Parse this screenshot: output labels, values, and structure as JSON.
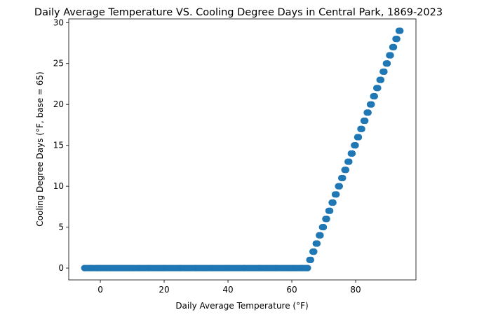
{
  "chart_data": {
    "type": "scatter",
    "title": "Daily Average Temperature VS. Cooling Degree Days in Central Park, 1869-2023",
    "xlabel": "Daily Average Temperature (°F)",
    "ylabel": "Cooling Degree Days (°F, base = 65)",
    "xlim": [
      -9.9,
      98.9
    ],
    "ylim": [
      -1.45,
      30.45
    ],
    "xticks": [
      0,
      20,
      40,
      60,
      80
    ],
    "yticks": [
      0,
      5,
      10,
      15,
      20,
      25,
      30
    ],
    "grid": false,
    "legend": "none",
    "marker_color": "#1f77b4",
    "series": [
      {
        "x_min": -5,
        "x_max": 94,
        "base_temperature": 65,
        "points": [
          [
            -5,
            0
          ],
          [
            -3,
            0
          ],
          [
            -1,
            0
          ],
          [
            0,
            0
          ],
          [
            1,
            0
          ],
          [
            2,
            0
          ],
          [
            3,
            0
          ],
          [
            4,
            0
          ],
          [
            5,
            0
          ],
          [
            6,
            0
          ],
          [
            7,
            0
          ],
          [
            8,
            0
          ],
          [
            9,
            0
          ],
          [
            10,
            0
          ],
          [
            12,
            0
          ],
          [
            15,
            0
          ],
          [
            20,
            0
          ],
          [
            25,
            0
          ],
          [
            30,
            0
          ],
          [
            35,
            0
          ],
          [
            40,
            0
          ],
          [
            45,
            0
          ],
          [
            50,
            0
          ],
          [
            55,
            0
          ],
          [
            60,
            0
          ],
          [
            63,
            0
          ],
          [
            65,
            0
          ],
          [
            66,
            1
          ],
          [
            67,
            2
          ],
          [
            68,
            3
          ],
          [
            69,
            4
          ],
          [
            70,
            5
          ],
          [
            71,
            6
          ],
          [
            72,
            7
          ],
          [
            73,
            8
          ],
          [
            74,
            9
          ],
          [
            75,
            10
          ],
          [
            76,
            11
          ],
          [
            77,
            12
          ],
          [
            78,
            13
          ],
          [
            79,
            14
          ],
          [
            80,
            15
          ],
          [
            81,
            16
          ],
          [
            82,
            17
          ],
          [
            83,
            18
          ],
          [
            84,
            19
          ],
          [
            85,
            20
          ],
          [
            86,
            21
          ],
          [
            87,
            22
          ],
          [
            88,
            23
          ],
          [
            89,
            24
          ],
          [
            90,
            25
          ],
          [
            91,
            26
          ],
          [
            92,
            27
          ],
          [
            93,
            28
          ],
          [
            94,
            29
          ]
        ]
      }
    ]
  }
}
